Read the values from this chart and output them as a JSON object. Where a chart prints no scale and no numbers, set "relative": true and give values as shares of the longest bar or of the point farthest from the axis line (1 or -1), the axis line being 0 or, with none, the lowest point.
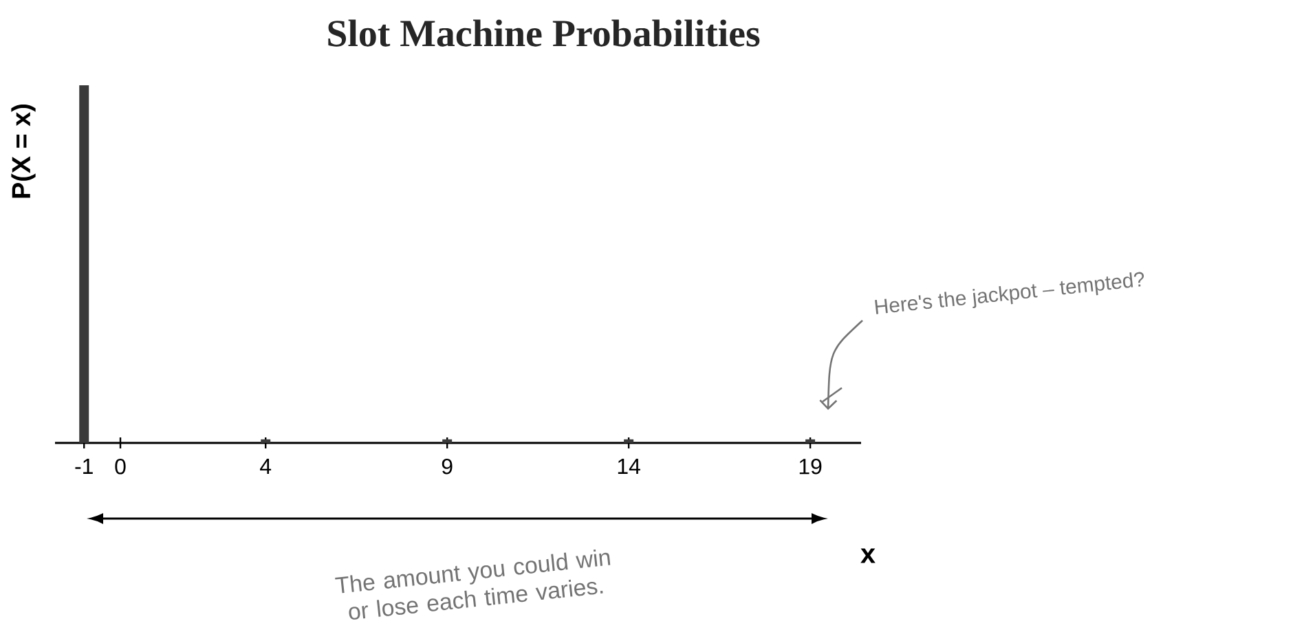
{
  "chart_data": {
    "type": "bar",
    "title": "Slot Machine Probabilities",
    "xlabel": "x",
    "ylabel": "P(X = x)",
    "relative": true,
    "x": [
      -1,
      4,
      9,
      14,
      19
    ],
    "values": [
      1,
      0.01,
      0.01,
      0.01,
      0.01
    ],
    "color": "#3a3a3a",
    "xlim": [
      -1.8,
      20.4
    ],
    "xticks": [
      -1,
      0,
      4,
      9,
      14,
      19
    ],
    "tick_labels": "x",
    "annotations": [
      "Here's the jackpot – tempted?",
      "The amount you could win or lose each time varies."
    ]
  }
}
